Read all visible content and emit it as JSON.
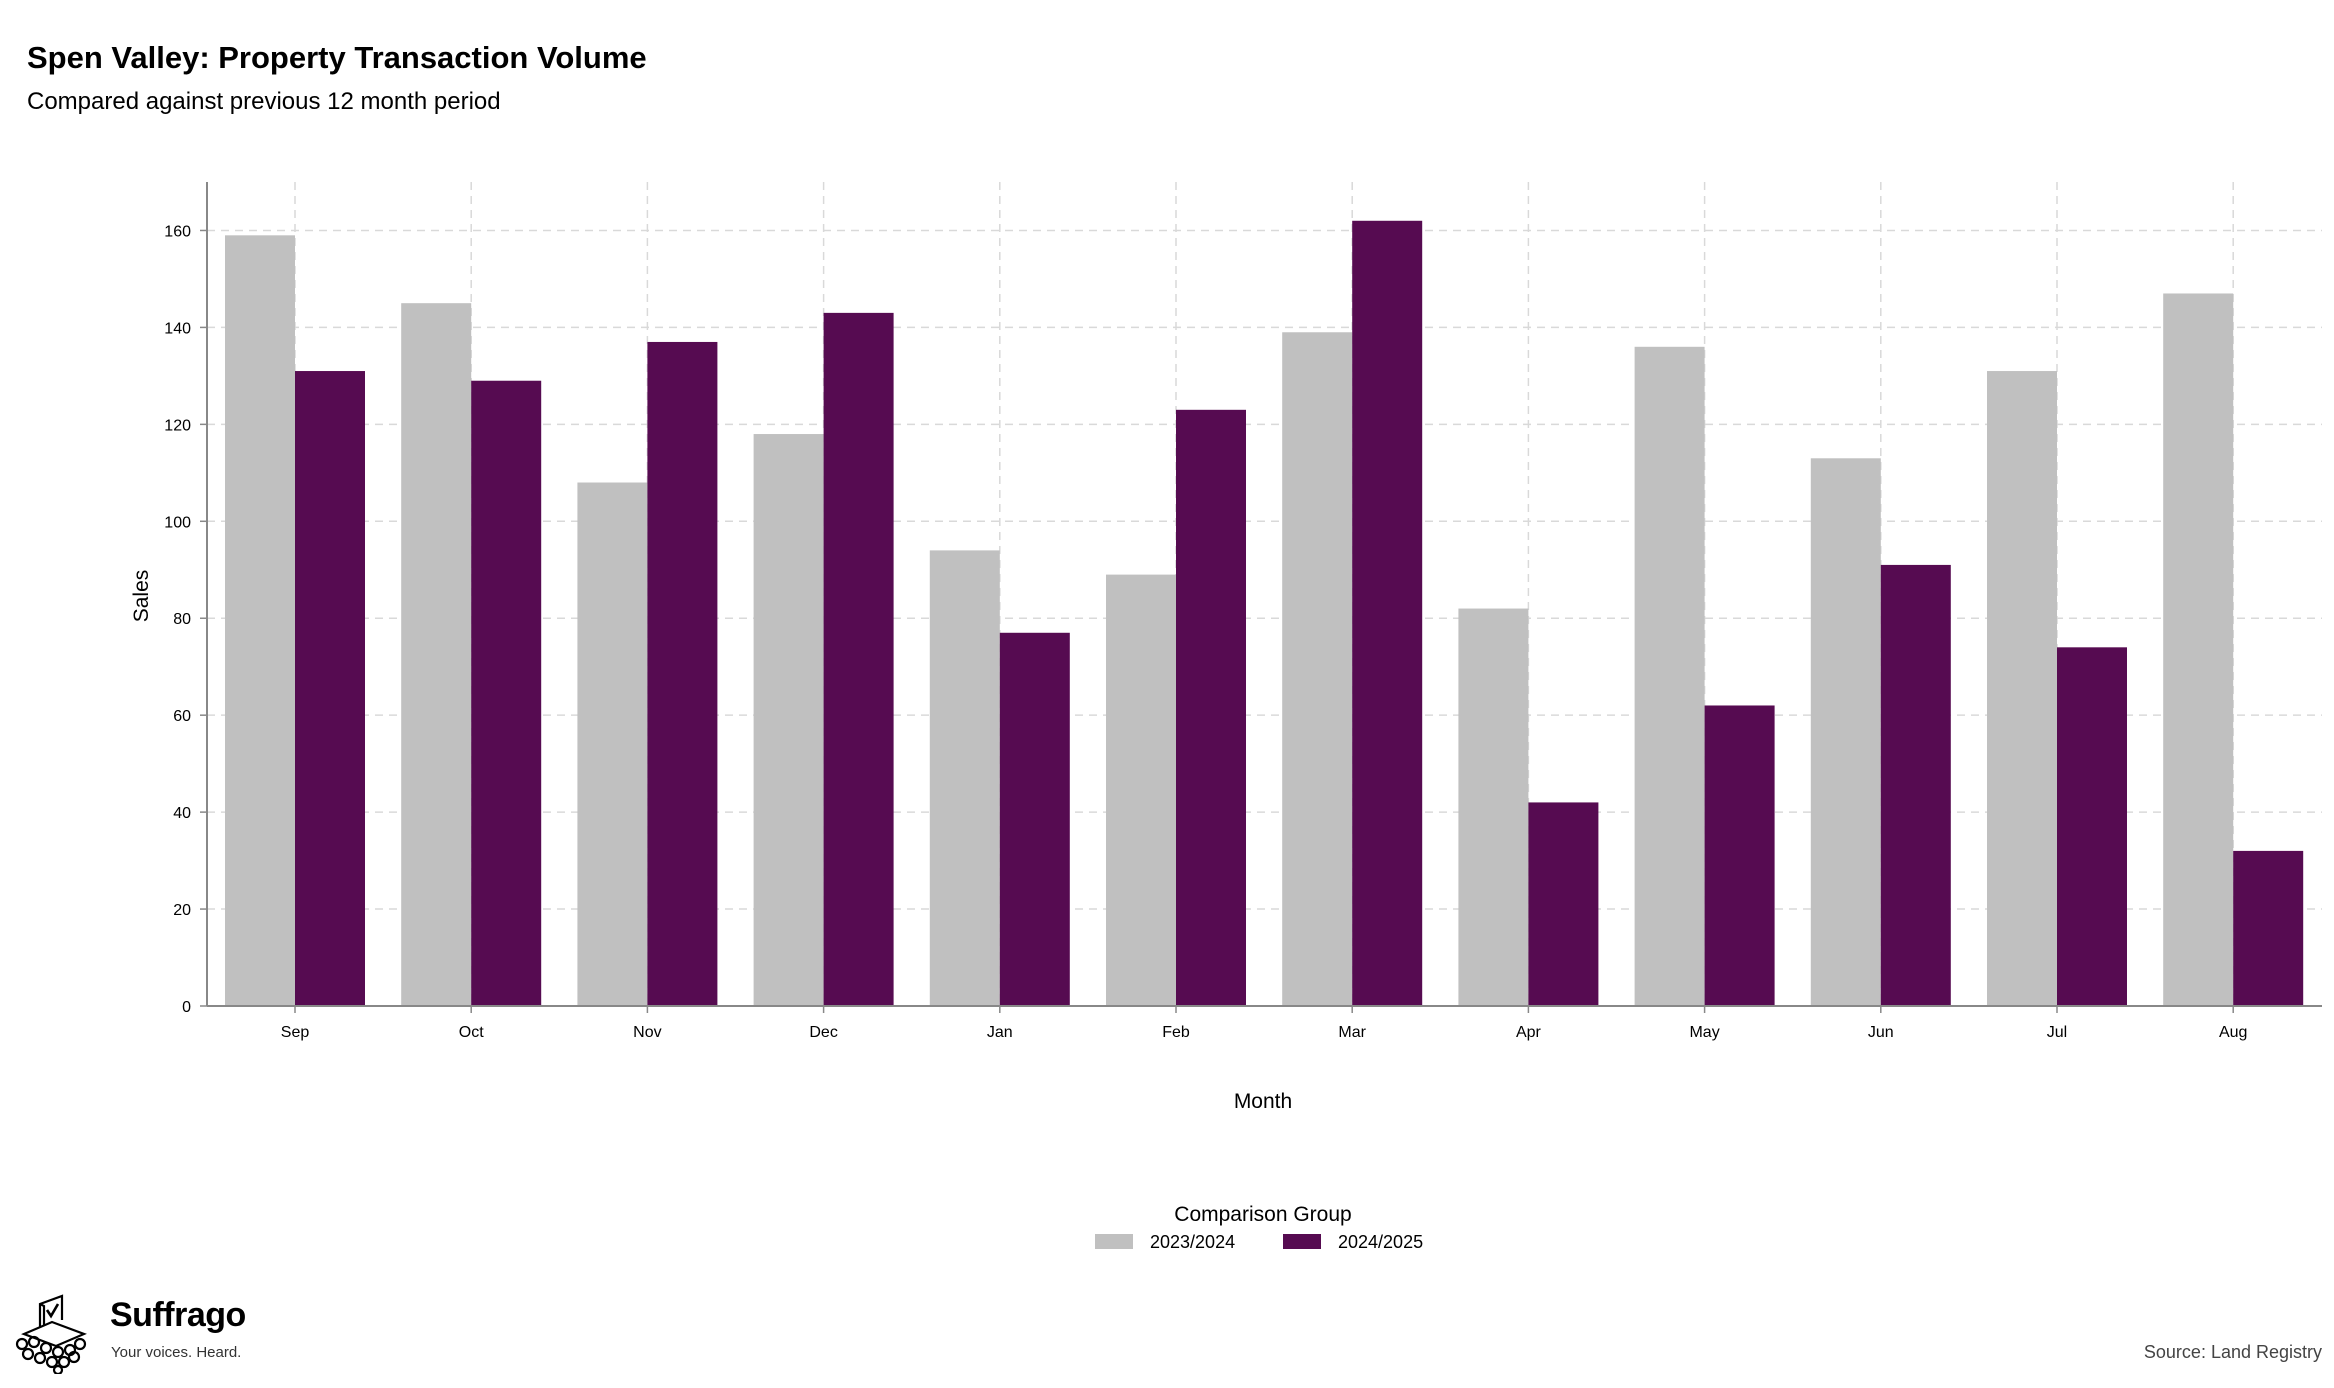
{
  "header": {
    "title": "Spen Valley: Property Transaction Volume",
    "subtitle": "Compared against previous 12 month period"
  },
  "chart_data": {
    "type": "bar",
    "title": "Spen Valley: Property Transaction Volume",
    "subtitle": "Compared against previous 12 month period",
    "xlabel": "Month",
    "ylabel": "Sales",
    "categories": [
      "Sep",
      "Oct",
      "Nov",
      "Dec",
      "Jan",
      "Feb",
      "Mar",
      "Apr",
      "May",
      "Jun",
      "Jul",
      "Aug"
    ],
    "series": [
      {
        "name": "2023/2024",
        "color": "#c0c0c0",
        "values": [
          159,
          145,
          108,
          118,
          94,
          89,
          139,
          82,
          136,
          113,
          131,
          147
        ]
      },
      {
        "name": "2024/2025",
        "color": "#560b51",
        "values": [
          131,
          129,
          137,
          143,
          77,
          123,
          162,
          42,
          62,
          91,
          74,
          32
        ]
      }
    ],
    "ylim": [
      0,
      170
    ],
    "yticks": [
      0,
      20,
      40,
      60,
      80,
      100,
      120,
      140,
      160
    ],
    "grid": true,
    "legend": {
      "title": "Comparison Group",
      "position": "bottom"
    }
  },
  "branding": {
    "name": "Suffrago",
    "tagline": "Your voices. Heard.",
    "logo_icon": "ballot-box-icon"
  },
  "footer": {
    "source": "Source: Land Registry"
  }
}
